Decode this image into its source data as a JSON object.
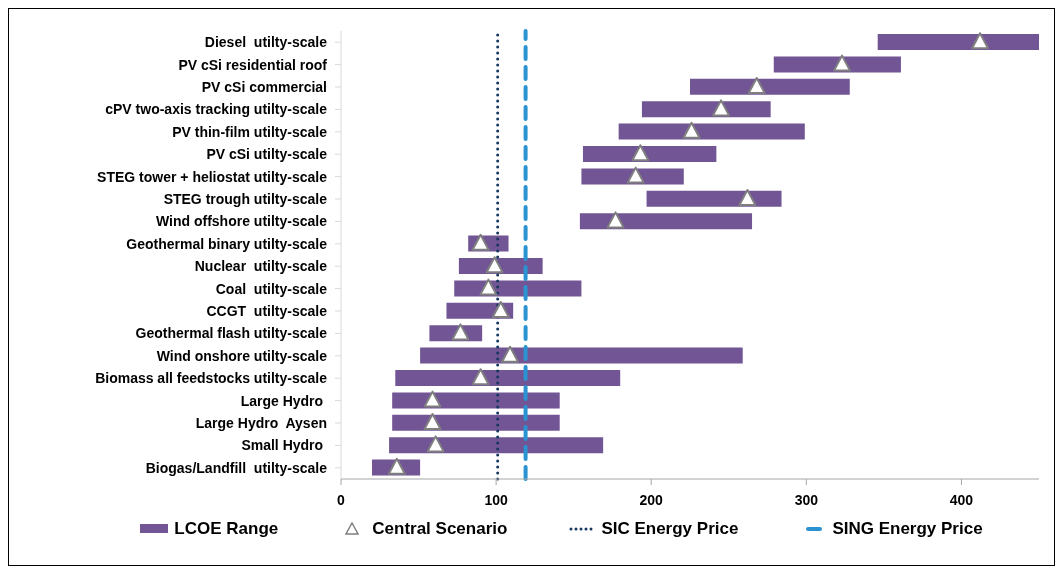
{
  "chart_data": {
    "type": "bar",
    "orientation": "horizontal",
    "categories": [
      "Diesel  utilty-scale",
      "PV cSi residential roof",
      "PV cSi commercial",
      "cPV two-axis tracking utilty-scale",
      "PV thin-film utilty-scale",
      "PV cSi utilty-scale",
      "STEG tower + heliostat utilty-scale",
      "STEG trough utilty-scale",
      "Wind offshore utilty-scale",
      "Geothermal binary utilty-scale",
      "Nuclear  utilty-scale",
      "Coal  utilty-scale",
      "CCGT  utilty-scale",
      "Geothermal flash utilty-scale",
      "Wind onshore utilty-scale",
      "Biomass all feedstocks utilty-scale",
      "Large Hydro ",
      "Large Hydro  Aysen",
      "Small Hydro ",
      "Biogas/Landfill  utilty-scale"
    ],
    "series": [
      {
        "name": "LCOE Range",
        "color": "#725594",
        "base": [
          346,
          279,
          225,
          194,
          179,
          156,
          155,
          197,
          154,
          82,
          76,
          73,
          68,
          57,
          51,
          35,
          33,
          33,
          31,
          20
        ],
        "values": [
          104,
          82,
          103,
          83,
          120,
          86,
          66,
          87,
          111,
          26,
          54,
          82,
          43,
          34,
          208,
          145,
          108,
          108,
          138,
          31
        ]
      },
      {
        "name": "Central Scenario",
        "type": "scatter",
        "marker": "triangle",
        "color": "#ffffff",
        "values": [
          412,
          323,
          268,
          245,
          226,
          193,
          190,
          262,
          177,
          90,
          99,
          95,
          103,
          77,
          109,
          90,
          59,
          59,
          61,
          36
        ]
      }
    ],
    "ref_lines": [
      {
        "axis": "x",
        "value": 101,
        "label": "SIC Energy Price",
        "color": "#17375e",
        "line_style": "dotted"
      },
      {
        "axis": "x",
        "value": 119,
        "label": "SING Energy Price",
        "color": "#2b93d1",
        "line_style": "dashed"
      }
    ],
    "xlim": [
      0,
      450
    ],
    "xticks": [
      0,
      100,
      200,
      300,
      400
    ],
    "legend": "bottom"
  }
}
